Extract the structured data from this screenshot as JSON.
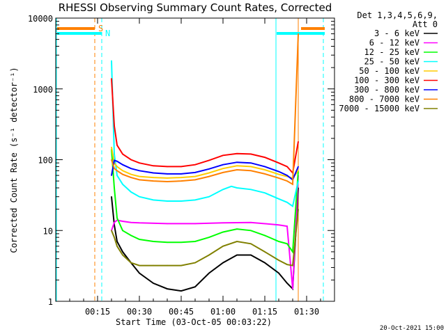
{
  "chart_data": {
    "type": "line",
    "title": "RHESSI Observing Summary Count Rates, Corrected",
    "xlabel": "Start Time (03-Oct-05 00:03:22)",
    "ylabel": "Corrected Count Rate (s⁻¹ detector⁻¹)",
    "y_scale": "log",
    "ylim": [
      1,
      10000
    ],
    "xlim_minutes_after_start": [
      0,
      100
    ],
    "x_tick_labels": [
      "00:15",
      "00:30",
      "00:45",
      "01:00",
      "01:15",
      "01:30"
    ],
    "x_tick_minutes": [
      15,
      30,
      45,
      60,
      75,
      90
    ],
    "y_tick_labels": [
      "1",
      "10",
      "100",
      "1000",
      "10000"
    ],
    "y_tick_values": [
      1,
      10,
      100,
      1000,
      10000
    ],
    "legend_header": [
      "Det 1,3,4,5,6,9,",
      "Att 0"
    ],
    "legend_placement": "right",
    "markers": {
      "saa_label": "S",
      "night_label": "N",
      "saa_color": "#ff8000",
      "night_color": "#00ffff"
    },
    "footer_date": "20-Oct-2021 15:00",
    "series": [
      {
        "name": "3 - 6 keV",
        "color": "#000000",
        "x": [
          20,
          21,
          22,
          24,
          27,
          30,
          35,
          40,
          45,
          50,
          55,
          60,
          65,
          70,
          75,
          80,
          83,
          85,
          87
        ],
        "y": [
          30,
          12,
          7,
          5,
          3.5,
          2.5,
          1.8,
          1.5,
          1.4,
          1.6,
          2.5,
          3.5,
          4.5,
          4.5,
          3.5,
          2.5,
          1.8,
          1.5,
          40
        ]
      },
      {
        "name": "6 - 12 keV",
        "color": "#ff00ff",
        "x": [
          20,
          21,
          22,
          24,
          27,
          30,
          40,
          50,
          60,
          70,
          80,
          83,
          85,
          87
        ],
        "y": [
          10,
          13,
          14,
          13.5,
          13,
          12.8,
          12.5,
          12.5,
          12.8,
          13,
          12,
          11.5,
          1.5,
          60
        ]
      },
      {
        "name": "12 - 25 keV",
        "color": "#00ff00",
        "x": [
          20,
          21,
          22,
          24,
          27,
          30,
          35,
          40,
          45,
          50,
          55,
          60,
          65,
          70,
          75,
          80,
          83,
          85,
          87
        ],
        "y": [
          140,
          40,
          15,
          10,
          8.5,
          7.5,
          7,
          6.8,
          6.8,
          7,
          8,
          9.5,
          10.5,
          10,
          8.5,
          7,
          6.5,
          5,
          70
        ]
      },
      {
        "name": "25 - 50 keV",
        "color": "#00ffff",
        "x": [
          20,
          21,
          22,
          24,
          27,
          30,
          35,
          40,
          45,
          50,
          55,
          60,
          63,
          65,
          70,
          75,
          80,
          83,
          85,
          87
        ],
        "y": [
          2500,
          120,
          60,
          45,
          35,
          30,
          27,
          26,
          26,
          27,
          30,
          38,
          42,
          40,
          38,
          34,
          28,
          25,
          22,
          50
        ]
      },
      {
        "name": "50 - 100 keV",
        "color": "#ffcc00",
        "x": [
          20,
          21,
          22,
          24,
          27,
          30,
          35,
          40,
          45,
          50,
          55,
          60,
          65,
          70,
          75,
          80,
          83,
          85,
          87
        ],
        "y": [
          150,
          90,
          80,
          70,
          62,
          58,
          56,
          55,
          56,
          58,
          65,
          75,
          82,
          80,
          72,
          62,
          58,
          55,
          70
        ]
      },
      {
        "name": "100 - 300 keV",
        "color": "#ff0000",
        "x": [
          20,
          21,
          22,
          24,
          27,
          30,
          35,
          40,
          45,
          50,
          55,
          60,
          65,
          70,
          75,
          80,
          83,
          85,
          87
        ],
        "y": [
          1400,
          300,
          160,
          120,
          100,
          90,
          82,
          80,
          80,
          85,
          98,
          115,
          122,
          120,
          108,
          90,
          80,
          65,
          180
        ]
      },
      {
        "name": "300 - 800 keV",
        "color": "#0000ff",
        "x": [
          20,
          21,
          22,
          24,
          27,
          30,
          35,
          40,
          45,
          50,
          55,
          60,
          65,
          70,
          75,
          80,
          83,
          85,
          87
        ],
        "y": [
          60,
          98,
          95,
          85,
          75,
          70,
          65,
          63,
          63,
          66,
          74,
          85,
          92,
          90,
          80,
          68,
          60,
          52,
          80
        ]
      },
      {
        "name": "800 - 7000 keV",
        "color": "#ff8000",
        "x": [
          20,
          21,
          22,
          24,
          27,
          30,
          35,
          40,
          45,
          50,
          55,
          60,
          65,
          70,
          75,
          80,
          83,
          85,
          87
        ],
        "y": [
          100,
          75,
          70,
          62,
          56,
          52,
          50,
          49,
          50,
          52,
          58,
          66,
          72,
          70,
          63,
          55,
          50,
          45,
          6000
        ]
      },
      {
        "name": "7000 - 15000 keV",
        "color": "#808000",
        "x": [
          20,
          21,
          22,
          24,
          27,
          30,
          35,
          40,
          45,
          50,
          55,
          60,
          65,
          70,
          75,
          80,
          83,
          85,
          87
        ],
        "y": [
          10,
          8,
          6,
          4.5,
          3.5,
          3.2,
          3.2,
          3.2,
          3.2,
          3.5,
          4.5,
          6,
          7,
          6.5,
          5,
          3.8,
          3.3,
          3.2,
          20
        ]
      }
    ]
  }
}
